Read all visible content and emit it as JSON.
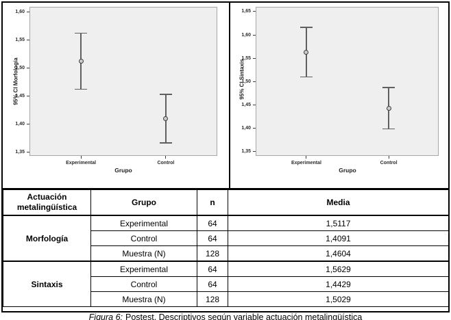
{
  "figure_caption": {
    "prefix": "Figura 6:",
    "text": "Postest. Descriptivos según variable actuación metalingüística"
  },
  "chart_data": [
    {
      "type": "errorbar",
      "title": "",
      "ylabel": "95% CI Morfología",
      "xlabel": "Grupo",
      "categories": [
        "Experimental",
        "Control"
      ],
      "ylim": [
        1.343,
        1.609
      ],
      "grid": false,
      "legend": "none",
      "yticks": [
        1.35,
        1.4,
        1.45,
        1.5,
        1.55,
        1.6
      ],
      "ytick_labels": [
        "1,35",
        "1,40",
        "1,45",
        "1,50",
        "1,55",
        "1,60"
      ],
      "points": [
        {
          "category": "Experimental",
          "mean": 1.5117,
          "ci_low": 1.462,
          "ci_high": 1.562
        },
        {
          "category": "Control",
          "mean": 1.4091,
          "ci_low": 1.366,
          "ci_high": 1.453
        }
      ]
    },
    {
      "type": "errorbar",
      "title": "",
      "ylabel": "95% CI Sintaxis",
      "xlabel": "Grupo",
      "categories": [
        "Experimental",
        "Control"
      ],
      "ylim": [
        1.341,
        1.66
      ],
      "grid": false,
      "legend": "none",
      "yticks": [
        1.35,
        1.4,
        1.45,
        1.5,
        1.55,
        1.6,
        1.65
      ],
      "ytick_labels": [
        "1,35",
        "1,40",
        "1,45",
        "1,50",
        "1,55",
        "1,60",
        "1,65"
      ],
      "points": [
        {
          "category": "Experimental",
          "mean": 1.5629,
          "ci_low": 1.51,
          "ci_high": 1.616
        },
        {
          "category": "Control",
          "mean": 1.4429,
          "ci_low": 1.399,
          "ci_high": 1.487
        }
      ]
    }
  ],
  "table": {
    "headers": [
      "Actuación metalingüística",
      "Grupo",
      "n",
      "Media"
    ],
    "groups": [
      {
        "label": "Morfología",
        "rows": [
          {
            "grupo": "Experimental",
            "n": "64",
            "media": "1,5117"
          },
          {
            "grupo": "Control",
            "n": "64",
            "media": "1,4091"
          },
          {
            "grupo": "Muestra (N)",
            "n": "128",
            "media": "1,4604"
          }
        ]
      },
      {
        "label": "Sintaxis",
        "rows": [
          {
            "grupo": "Experimental",
            "n": "64",
            "media": "1,5629"
          },
          {
            "grupo": "Control",
            "n": "64",
            "media": "1,4429"
          },
          {
            "grupo": "Muestra (N)",
            "n": "128",
            "media": "1,5029"
          }
        ]
      }
    ]
  },
  "colors": {
    "plot_background": "#efefef",
    "plot_border": "#a6a6a6",
    "errorbar": "#5f5f5f",
    "marker_fill": "#cccccc",
    "marker_stroke": "#3d3d3d",
    "table_border": "#000000",
    "text": "#1a1a1a"
  }
}
